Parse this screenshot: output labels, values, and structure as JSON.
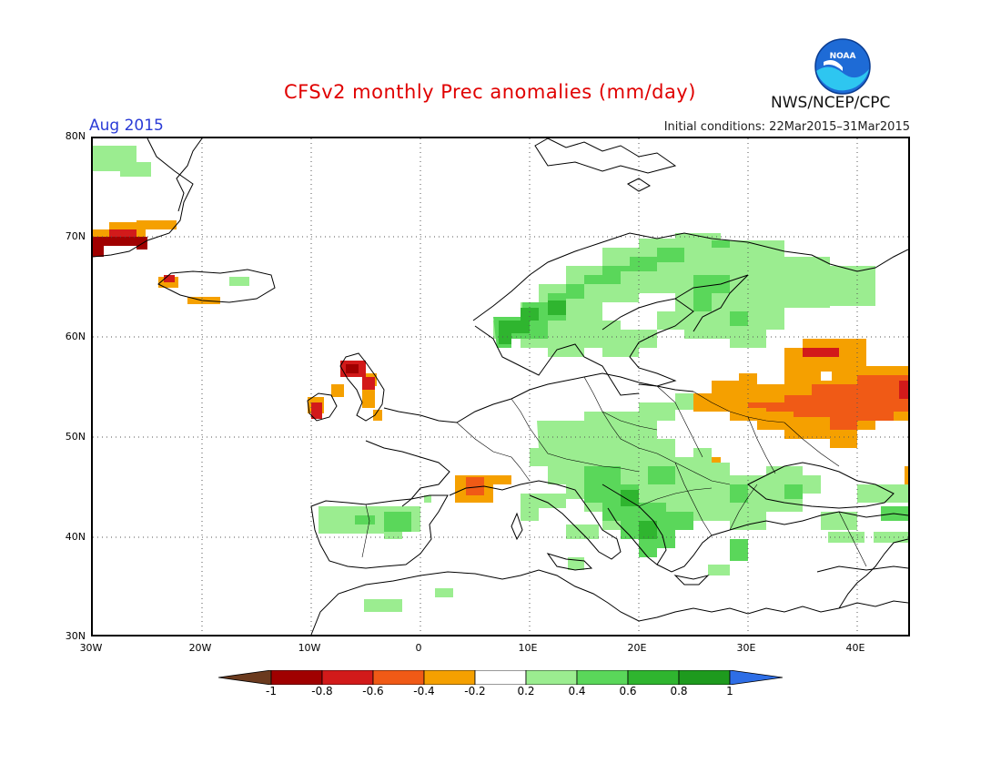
{
  "header": {
    "title": "CFSv2 monthly Prec anomalies (mm/day)",
    "month": "Aug 2015",
    "initial_conditions": "Initial conditions: 22Mar2015–31Mar2015",
    "org": "NWS/NCEP/CPC",
    "logo_text": "NOAA"
  },
  "map": {
    "lat_labels": [
      "80N",
      "70N",
      "60N",
      "50N",
      "40N",
      "30N"
    ],
    "lon_labels": [
      "30W",
      "20W",
      "10W",
      "0",
      "10E",
      "20E",
      "30E",
      "40E"
    ],
    "grid": "dotted",
    "lon_range": [
      -30,
      45
    ],
    "lat_range": [
      30,
      80
    ]
  },
  "colorbar": {
    "labels": [
      "-1",
      "-0.8",
      "-0.6",
      "-0.4",
      "-0.2",
      "0.2",
      "0.4",
      "0.6",
      "0.8",
      "1"
    ],
    "colors": [
      "#6b3a1e",
      "#a00000",
      "#d21a1a",
      "#f05a16",
      "#f5a000",
      "#ffffff",
      "#9bed90",
      "#5ad75a",
      "#2fb52f",
      "#1e9a1e",
      "#2e6ee6"
    ]
  },
  "anomaly_colors": {
    "dry1": "#f5a000",
    "dry2": "#f05a16",
    "dry3": "#d21a1a",
    "dry4": "#a00000",
    "wet1": "#9bed90",
    "wet2": "#5ad75a",
    "wet3": "#2fb52f"
  }
}
